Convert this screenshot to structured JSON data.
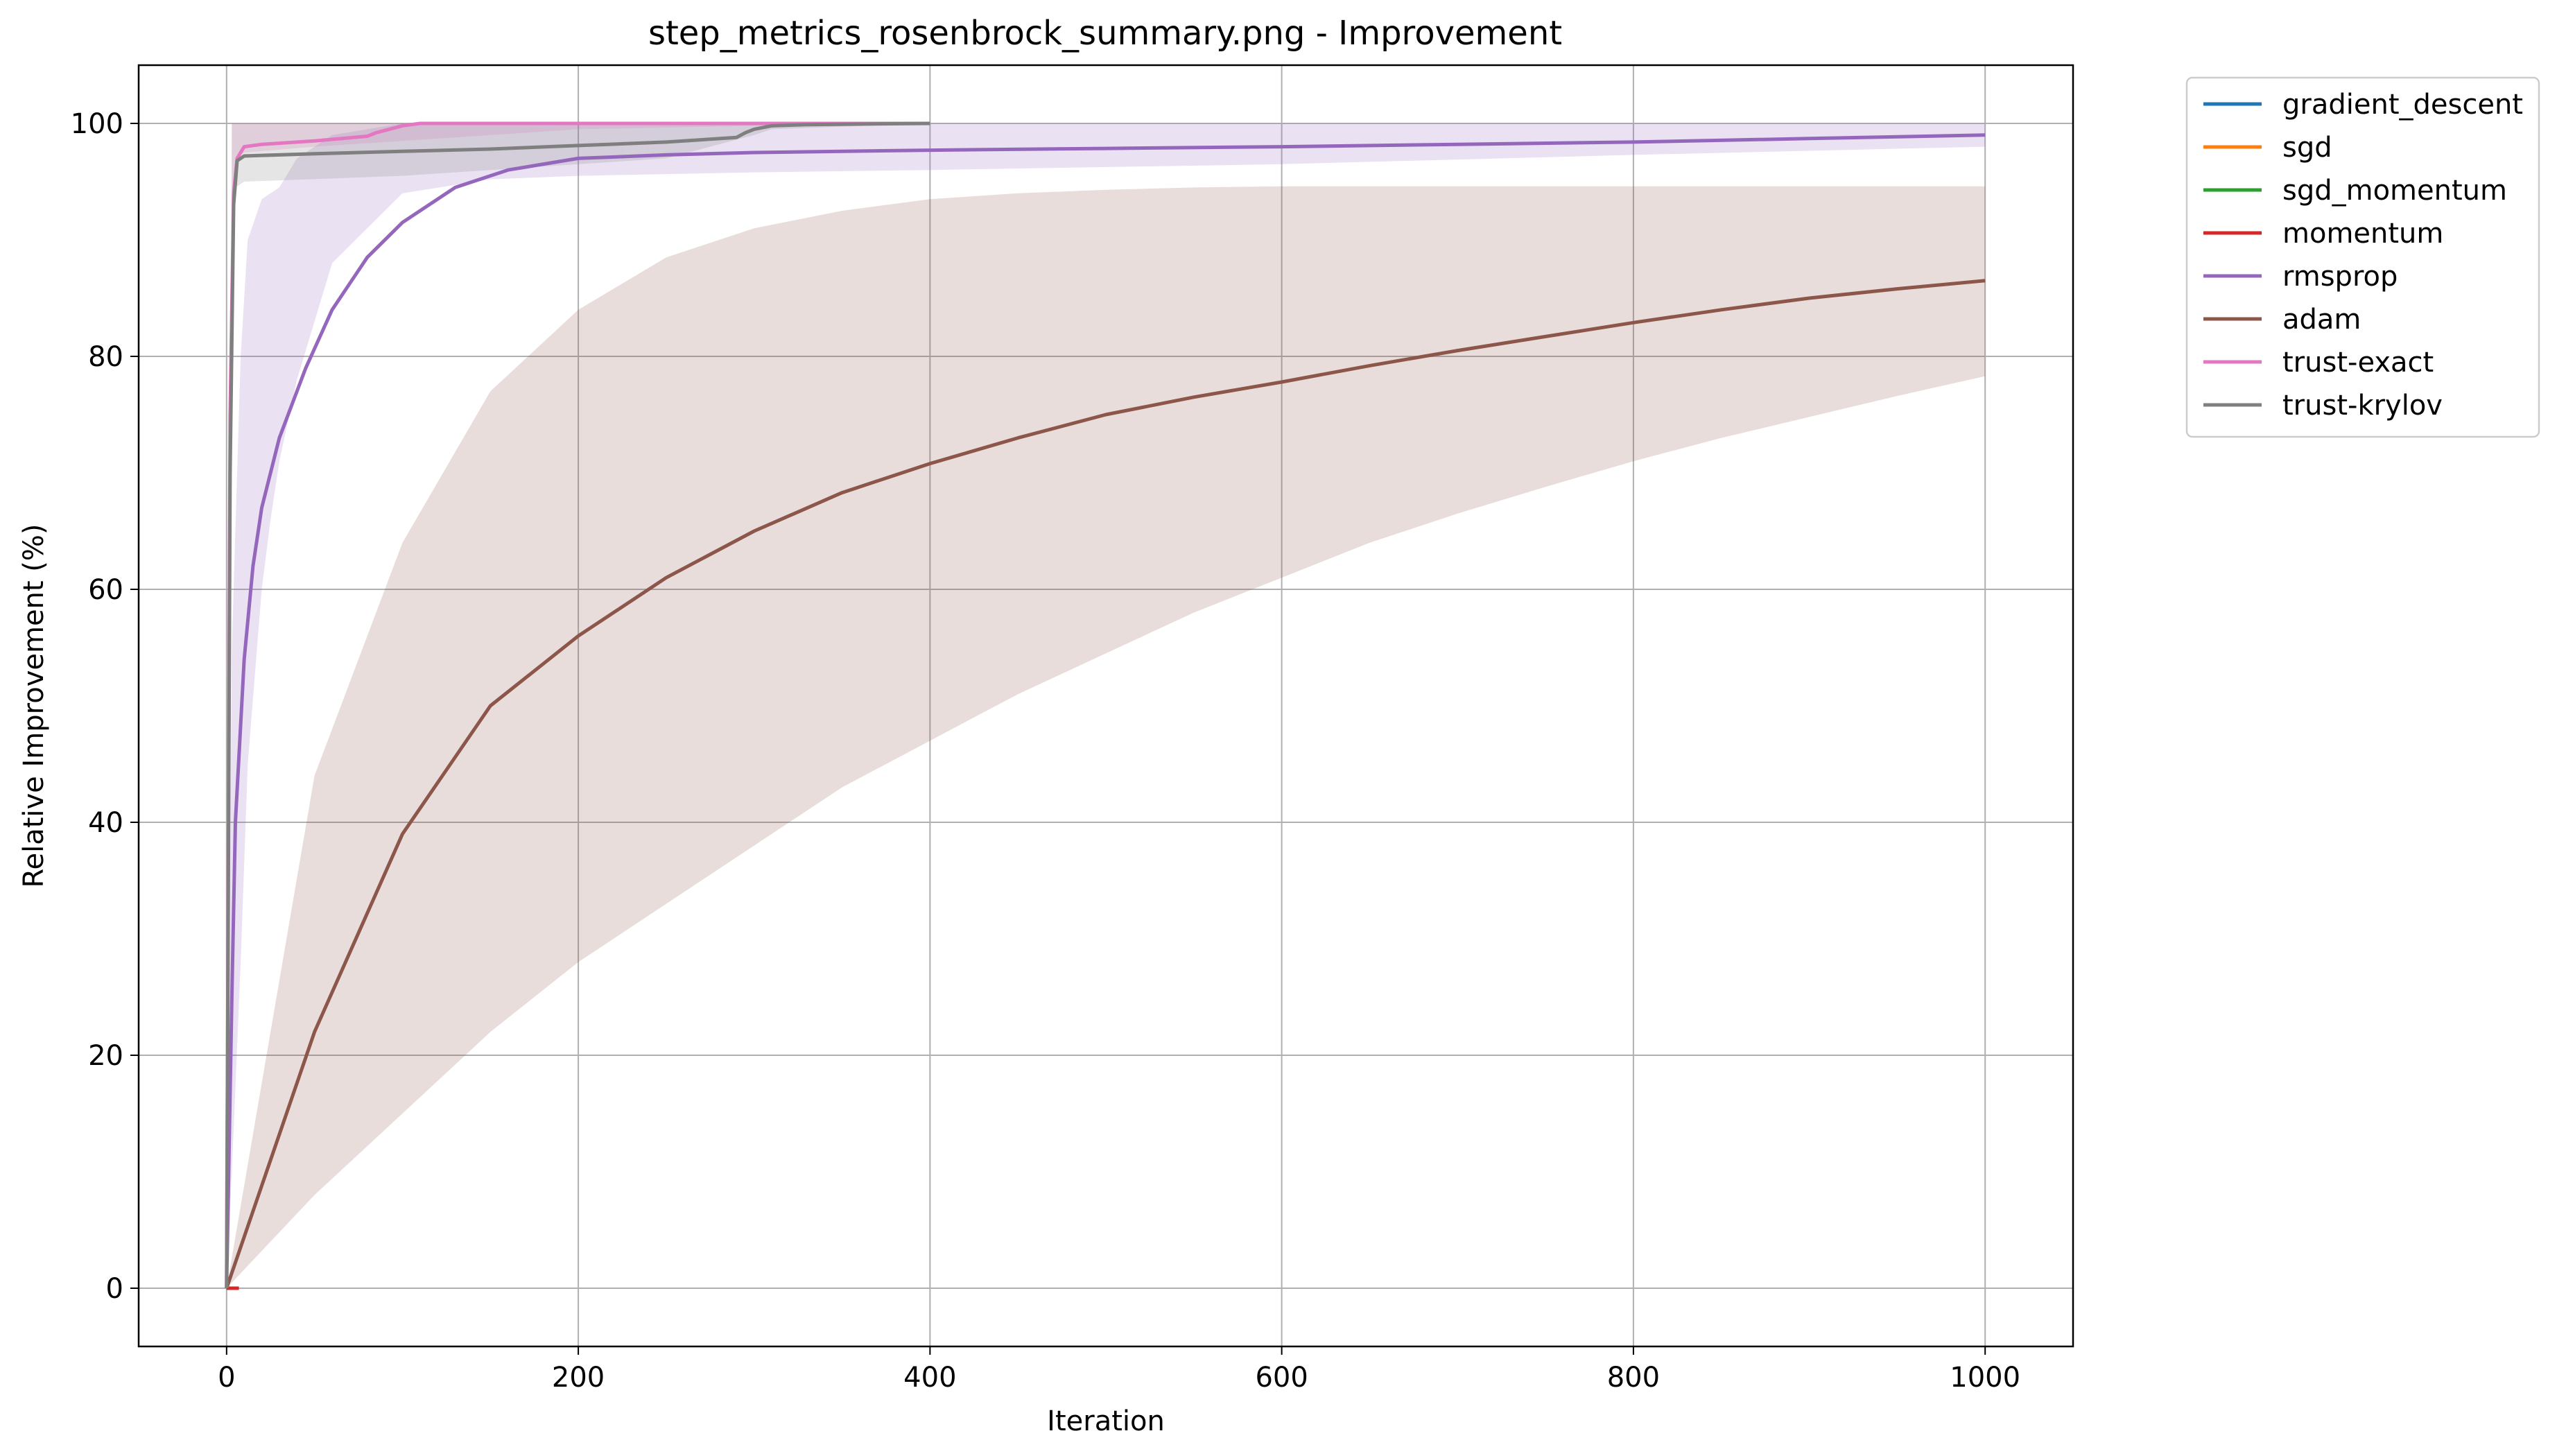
{
  "chart_data": {
    "type": "line",
    "title": "step_metrics_rosenbrock_summary.png - Improvement",
    "xlabel": "Iteration",
    "ylabel": "Relative Improvement (%)",
    "xlim": [
      -50,
      1050
    ],
    "ylim": [
      -5,
      105
    ],
    "xticks": [
      0,
      200,
      400,
      600,
      800,
      1000
    ],
    "yticks": [
      0,
      20,
      40,
      60,
      80,
      100
    ],
    "grid": true,
    "legend_position": "outside-right",
    "series": [
      {
        "name": "gradient_descent",
        "color": "#1f77b4",
        "x": [
          0,
          3,
          6
        ],
        "y": [
          0,
          0,
          0
        ]
      },
      {
        "name": "sgd",
        "color": "#ff7f0e",
        "x": [
          0,
          3,
          6
        ],
        "y": [
          0,
          0,
          0
        ]
      },
      {
        "name": "sgd_momentum",
        "color": "#2ca02c",
        "x": [
          0,
          3,
          6
        ],
        "y": [
          0,
          0,
          0
        ]
      },
      {
        "name": "momentum",
        "color": "#d62728",
        "x": [
          0,
          3,
          7
        ],
        "y": [
          0,
          0,
          0
        ]
      },
      {
        "name": "rmsprop",
        "color": "#9467bd",
        "x": [
          0,
          3,
          5,
          10,
          15,
          20,
          30,
          45,
          60,
          80,
          100,
          130,
          160,
          200,
          250,
          300,
          400,
          500,
          600,
          700,
          800,
          900,
          1000
        ],
        "y": [
          0,
          25,
          40,
          54,
          62,
          67,
          73,
          79,
          84,
          88.5,
          91.5,
          94.5,
          96,
          97,
          97.3,
          97.5,
          97.7,
          97.85,
          98,
          98.2,
          98.4,
          98.7,
          99
        ],
        "band": {
          "x": [
            0,
            3,
            8,
            12,
            20,
            25,
            30,
            40,
            60,
            100,
            150,
            200,
            300,
            400,
            600,
            800,
            1000
          ],
          "lower": [
            0,
            10,
            28,
            45,
            60,
            66,
            71,
            78,
            88,
            94,
            95.2,
            95.5,
            95.8,
            96,
            96.5,
            97.3,
            98
          ],
          "upper": [
            0,
            55,
            80,
            90,
            93.5,
            94,
            94.5,
            97,
            99,
            100,
            100,
            100,
            100,
            100,
            100,
            100,
            100
          ]
        }
      },
      {
        "name": "adam",
        "color": "#8c564b",
        "x": [
          0,
          50,
          100,
          150,
          200,
          250,
          300,
          350,
          400,
          450,
          500,
          550,
          600,
          650,
          700,
          750,
          800,
          850,
          900,
          950,
          1000
        ],
        "y": [
          0,
          22,
          39,
          50,
          56,
          61,
          65,
          68.3,
          70.8,
          73,
          75,
          76.5,
          77.8,
          79.2,
          80.5,
          81.7,
          82.9,
          84,
          85,
          85.8,
          86.5
        ],
        "band": {
          "x": [
            0,
            50,
            100,
            150,
            200,
            250,
            300,
            350,
            400,
            450,
            500,
            550,
            600,
            650,
            700,
            750,
            800,
            850,
            900,
            950,
            1000
          ],
          "lower": [
            0,
            8,
            15,
            22,
            28,
            33,
            38,
            43,
            47,
            51,
            54.5,
            58,
            61,
            64,
            66.5,
            68.8,
            71,
            73,
            74.8,
            76.6,
            78.3
          ],
          "upper": [
            0,
            44,
            64,
            77,
            84,
            88.5,
            91,
            92.5,
            93.5,
            94,
            94.3,
            94.5,
            94.6,
            94.6,
            94.6,
            94.6,
            94.6,
            94.6,
            94.6,
            94.6,
            94.6
          ]
        }
      },
      {
        "name": "trust-exact",
        "color": "#e377c2",
        "x": [
          0,
          2,
          4,
          6,
          10,
          20,
          50,
          80,
          85,
          90,
          100,
          110,
          150,
          200,
          300,
          400
        ],
        "y": [
          0,
          75,
          94,
          97,
          98,
          98.2,
          98.5,
          98.9,
          99.2,
          99.4,
          99.8,
          100,
          100,
          100,
          100,
          100
        ],
        "band": {
          "x": [
            0,
            3,
            5,
            10,
            50,
            100,
            200,
            300,
            400
          ],
          "lower": [
            0,
            93,
            97,
            97.5,
            98,
            98.5,
            99.5,
            99.8,
            100
          ],
          "upper": [
            0,
            100,
            100,
            100,
            100,
            100,
            100,
            100,
            100
          ]
        }
      },
      {
        "name": "trust-krylov",
        "color": "#7f7f7f",
        "x": [
          0,
          2,
          4,
          6,
          10,
          50,
          100,
          150,
          200,
          250,
          290,
          295,
          300,
          310,
          330,
          400
        ],
        "y": [
          0,
          70,
          93,
          96.8,
          97.2,
          97.4,
          97.6,
          97.8,
          98.1,
          98.4,
          98.8,
          99.2,
          99.5,
          99.8,
          99.9,
          100
        ],
        "band": {
          "x": [
            0,
            3,
            5,
            10,
            100,
            200,
            250,
            300,
            310,
            400
          ],
          "lower": [
            0,
            90,
            94.5,
            95,
            95.5,
            96.5,
            97,
            99,
            99.5,
            100
          ],
          "upper": [
            0,
            100,
            100,
            100,
            100,
            100,
            100,
            100,
            100,
            100
          ]
        }
      }
    ]
  }
}
